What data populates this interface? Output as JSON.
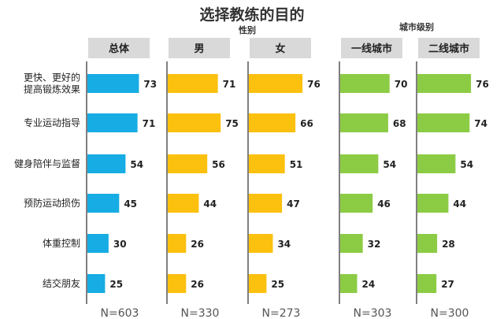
{
  "title": "选择教练的目的",
  "group_labels": {
    "gender": "性别",
    "city": "城市级别"
  },
  "colors": {
    "blue": "#17ace3",
    "yellow": "#fcc00e",
    "green": "#8ccc45",
    "header_bg": "#d9d9d9",
    "axis": "#3b3b3b"
  },
  "chart_data": {
    "type": "bar",
    "orientation": "horizontal",
    "title": "选择教练的目的",
    "categories": [
      "更快、更好的提高锻炼效果",
      "专业运动指导",
      "健身陪伴与监督",
      "预防运动损伤",
      "体重控制",
      "结交朋友"
    ],
    "category_lines": [
      [
        "更快、更好的",
        "提高锻炼效果"
      ],
      [
        "专业运动指导"
      ],
      [
        "健身陪伴与监督"
      ],
      [
        "预防运动损伤"
      ],
      [
        "体重控制"
      ],
      [
        "结交朋友"
      ]
    ],
    "panels": [
      {
        "name": "总体",
        "color": "#17ace3",
        "n_label": "N=603",
        "values": [
          73,
          71,
          54,
          45,
          30,
          25
        ]
      },
      {
        "name": "男",
        "color": "#fcc00e",
        "n_label": "N=330",
        "values": [
          71,
          75,
          56,
          44,
          26,
          26
        ]
      },
      {
        "name": "女",
        "color": "#fcc00e",
        "n_label": "N=273",
        "values": [
          76,
          66,
          51,
          47,
          34,
          25
        ]
      },
      {
        "name": "一线城市",
        "color": "#8ccc45",
        "n_label": "N=303",
        "values": [
          70,
          68,
          54,
          46,
          32,
          24
        ]
      },
      {
        "name": "二线城市",
        "color": "#8ccc45",
        "n_label": "N=300",
        "values": [
          76,
          74,
          54,
          44,
          28,
          27
        ]
      }
    ],
    "panel_groups": [
      {
        "label": "性别",
        "panels": [
          "男",
          "女"
        ]
      },
      {
        "label": "城市级别",
        "panels": [
          "一线城市",
          "二线城市"
        ]
      }
    ],
    "grid": false,
    "legend": "none"
  }
}
